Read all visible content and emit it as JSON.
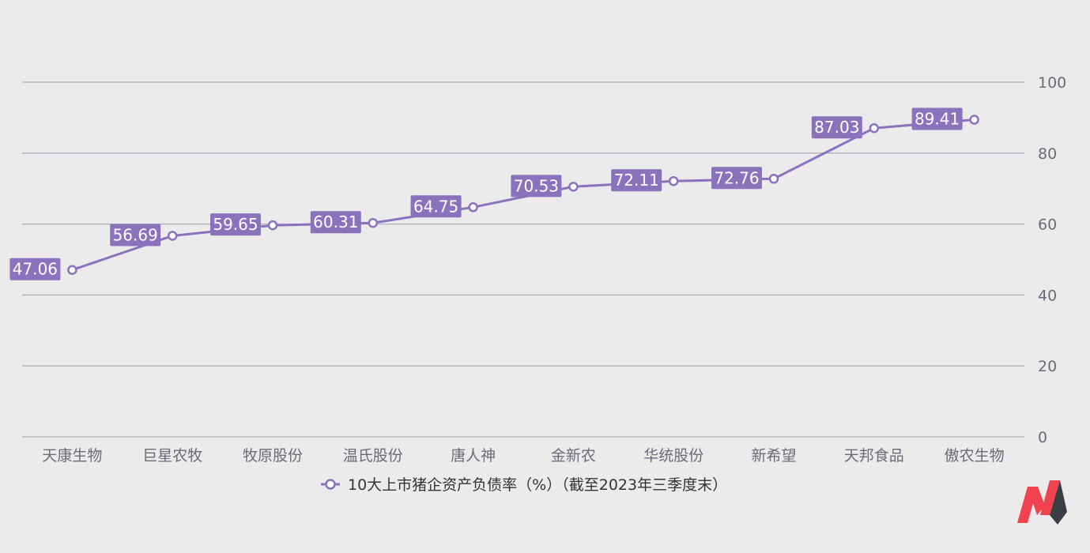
{
  "chart_data": {
    "type": "line",
    "categories": [
      "天康生物",
      "巨星农牧",
      "牧原股份",
      "温氏股份",
      "唐人神",
      "金新农",
      "华统股份",
      "新希望",
      "天邦食品",
      "傲农生物"
    ],
    "series": [
      {
        "name": "10大上市猪企资产负债率（%）（截至2023年三季度末）",
        "values": [
          47.06,
          56.69,
          59.65,
          60.31,
          64.75,
          70.53,
          72.11,
          72.76,
          87.03,
          89.41
        ],
        "labels": [
          "47.06",
          "56.69",
          "59.65",
          "60.31",
          "64.75",
          "70.53",
          "72.11",
          "72.76",
          "87.03",
          "89.41"
        ]
      }
    ],
    "yticks": [
      "0",
      "20",
      "40",
      "60",
      "80",
      "100"
    ],
    "ylim": [
      0,
      100
    ],
    "y_axis_position": "right",
    "grid": true,
    "legend": "bottom-center",
    "colors": {
      "series": "#8b72bd",
      "grid": "#b0b0bc",
      "background": "#ebebeb"
    }
  },
  "logo": {
    "name": "brand-logo",
    "colors": [
      "#f0434f",
      "#3a3d44"
    ]
  }
}
